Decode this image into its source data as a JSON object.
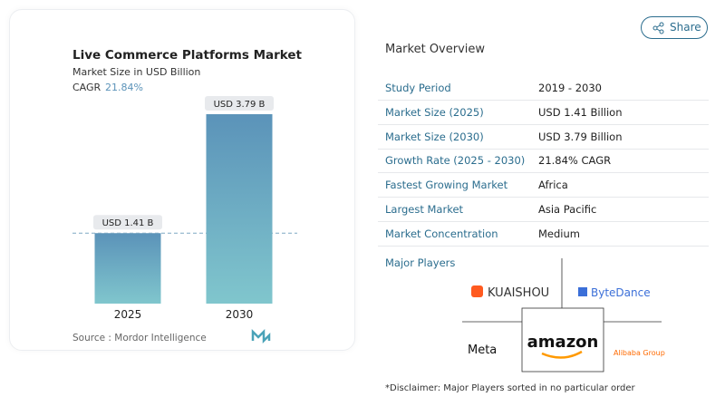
{
  "chart_data": {
    "type": "bar",
    "title": "Live Commerce Platforms Market",
    "subtitle": "Market Size in USD Billion",
    "cagr_label": "CAGR",
    "cagr_value": "21.84%",
    "categories": [
      "2025",
      "2030"
    ],
    "values": [
      1.41,
      3.79
    ],
    "value_labels": [
      "USD 1.41 B",
      "USD 3.79 B"
    ],
    "color_top": "#5b93b9",
    "color_bottom": "#80c6cd",
    "source": "Source :  Mordor Intelligence"
  },
  "share": "Share",
  "overview": {
    "title": "Market Overview",
    "rows": [
      [
        "Study Period",
        "2019 - 2030"
      ],
      [
        "Market Size (2025)",
        "USD 1.41 Billion"
      ],
      [
        "Market Size (2030)",
        "USD 3.79 Billion"
      ],
      [
        "Growth Rate (2025 - 2030)",
        "21.84% CAGR"
      ],
      [
        "Fastest Growing Market",
        "Africa"
      ],
      [
        "Largest Market",
        "Asia Pacific"
      ],
      [
        "Market Concentration",
        "Medium"
      ]
    ]
  },
  "players": {
    "title": "Major Players",
    "names": [
      "KUAISHOU",
      "ByteDance",
      "Meta",
      "amazon",
      "Alibaba Group"
    ]
  },
  "disclaimer": "*Disclaimer: Major Players sorted in no particular order"
}
